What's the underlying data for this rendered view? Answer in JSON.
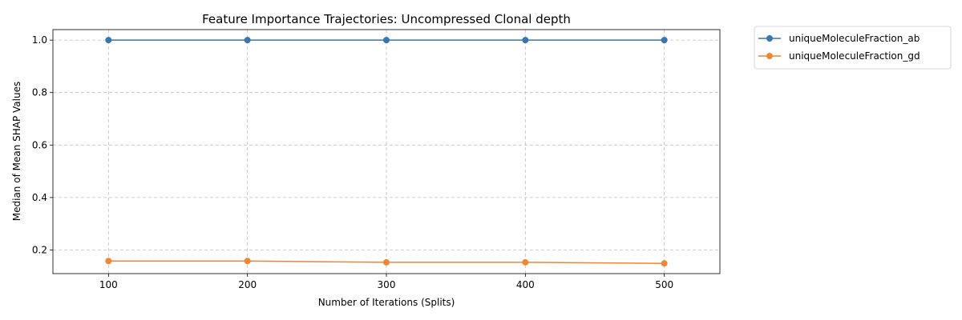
{
  "chart_data": {
    "type": "line",
    "title": "Feature Importance Trajectories: Uncompressed Clonal depth",
    "xlabel": "Number of Iterations (Splits)",
    "ylabel": "Median of Mean SHAP Values",
    "x": [
      100,
      200,
      300,
      400,
      500
    ],
    "x_ticks": [
      "100",
      "200",
      "300",
      "400",
      "500"
    ],
    "y_ticks": [
      "0.2",
      "0.4",
      "0.6",
      "0.8",
      "1.0"
    ],
    "xlim": [
      60,
      540
    ],
    "ylim": [
      0.11,
      1.04
    ],
    "grid": true,
    "legend_position": "outside-top-right",
    "series": [
      {
        "name": "uniqueMoleculeFraction_ab",
        "color": "#3a75af",
        "values": [
          1.0,
          1.0,
          1.0,
          1.0,
          1.0
        ]
      },
      {
        "name": "uniqueMoleculeFraction_gd",
        "color": "#ef8636",
        "values": [
          0.158,
          0.158,
          0.153,
          0.153,
          0.149
        ]
      }
    ]
  }
}
